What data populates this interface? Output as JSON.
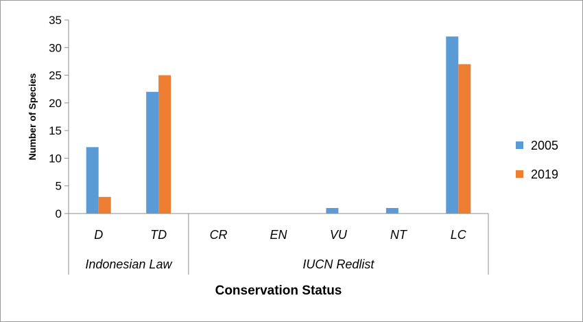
{
  "chart_data": {
    "type": "bar",
    "title": "",
    "xlabel": "Conservation Status",
    "ylabel": "Number of Species",
    "ylim": [
      0,
      35
    ],
    "yticks": [
      0,
      5,
      10,
      15,
      20,
      25,
      30,
      35
    ],
    "categories": [
      "D",
      "TD",
      "CR",
      "EN",
      "VU",
      "NT",
      "LC"
    ],
    "groups": [
      {
        "label": "Indonesian Law",
        "categories": [
          "D",
          "TD"
        ]
      },
      {
        "label": "IUCN Redlist",
        "categories": [
          "CR",
          "EN",
          "VU",
          "NT",
          "LC"
        ]
      }
    ],
    "series": [
      {
        "name": "2005",
        "color": "#5b9bd5",
        "values": [
          12,
          22,
          0,
          0,
          1,
          1,
          32
        ]
      },
      {
        "name": "2019",
        "color": "#ed7d31",
        "values": [
          3,
          25,
          0,
          0,
          0,
          0,
          27
        ]
      }
    ],
    "grid": false,
    "legend": "right"
  }
}
